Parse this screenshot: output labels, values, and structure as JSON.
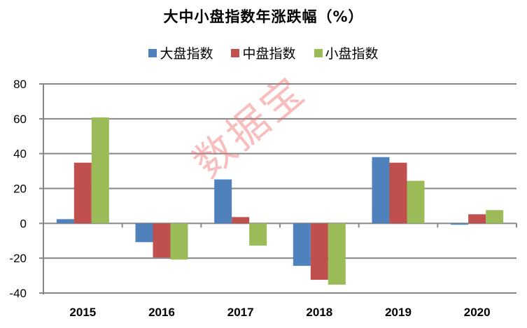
{
  "title": "大中小盘指数年涨跌幅（%）",
  "legend": [
    {
      "label": "大盘指数",
      "color": "#4F81BD"
    },
    {
      "label": "中盘指数",
      "color": "#C0504D"
    },
    {
      "label": "小盘指数",
      "color": "#9BBB59"
    }
  ],
  "watermark": "数据宝",
  "chart_data": {
    "type": "bar",
    "title": "大中小盘指数年涨跌幅（%）",
    "xlabel": "",
    "ylabel": "",
    "categories": [
      "2015",
      "2016",
      "2017",
      "2018",
      "2019",
      "2020"
    ],
    "series": [
      {
        "name": "大盘指数",
        "color": "#4F81BD",
        "values": [
          2.4,
          -10.8,
          25.2,
          -24.4,
          38.0,
          -0.8
        ]
      },
      {
        "name": "中盘指数",
        "color": "#C0504D",
        "values": [
          34.8,
          -19.6,
          3.6,
          -32.4,
          34.8,
          5.2
        ]
      },
      {
        "name": "小盘指数",
        "color": "#9BBB59",
        "values": [
          60.8,
          -20.8,
          -12.8,
          -35.2,
          24.4,
          7.6
        ]
      }
    ],
    "ylim": [
      -40,
      80
    ],
    "yticks": [
      80,
      60,
      40,
      20,
      0,
      -20,
      -40
    ],
    "grid": true,
    "legend_position": "top"
  }
}
